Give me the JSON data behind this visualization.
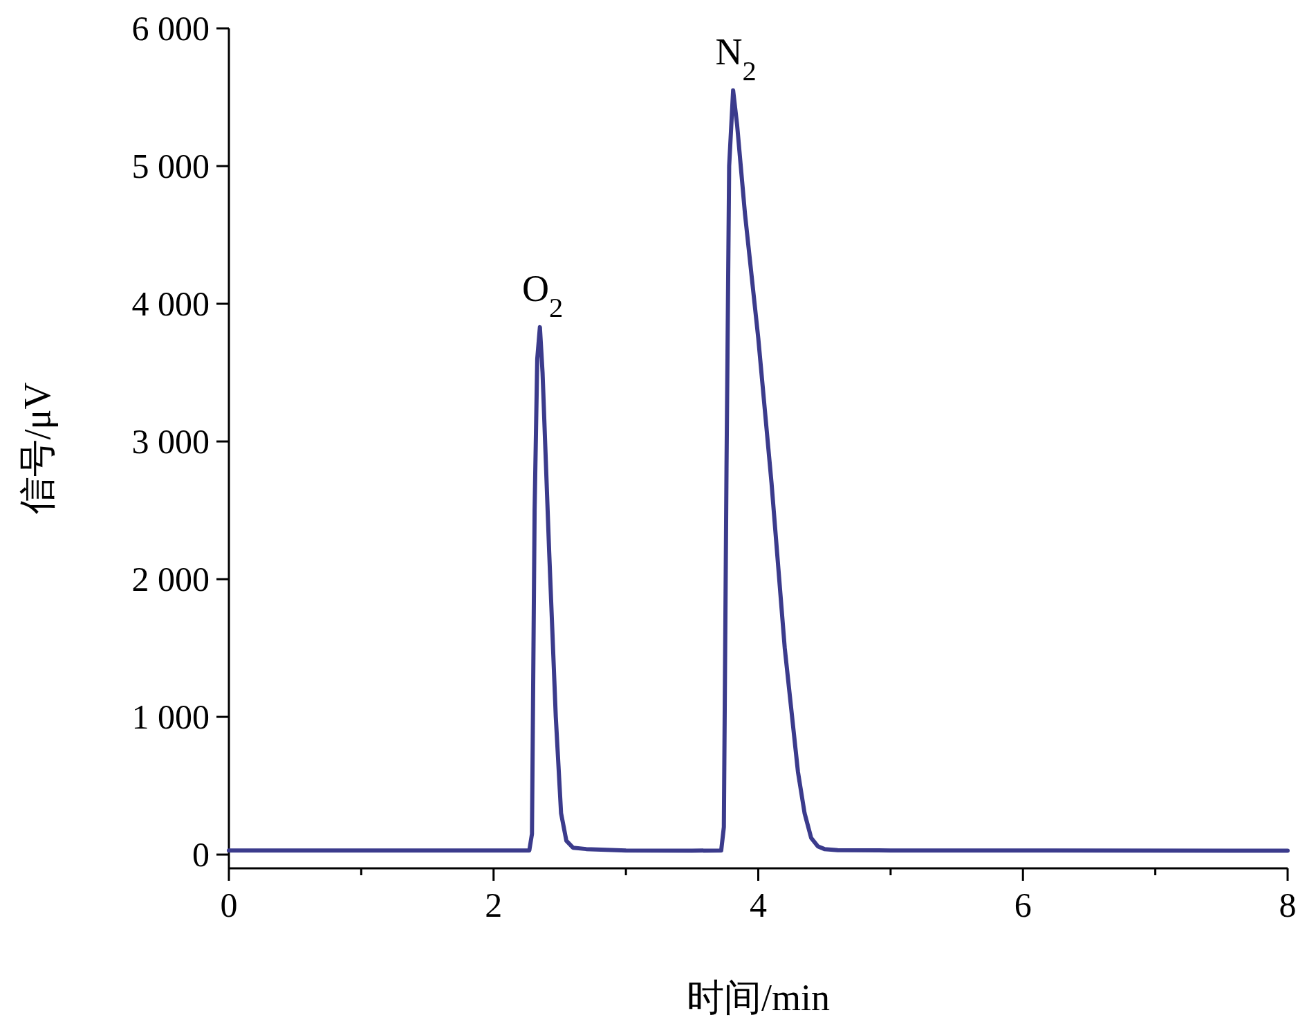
{
  "chart_data": {
    "type": "line",
    "xlabel": "时间/min",
    "ylabel": "信号/μV",
    "color": "#3b3b8c",
    "xlim": [
      0,
      8
    ],
    "ylim": [
      -100,
      6000
    ],
    "xticks": [
      0,
      2,
      4,
      6,
      8
    ],
    "yticks": [
      {
        "value": 0,
        "label": "0"
      },
      {
        "value": 1000,
        "label": "1 000"
      },
      {
        "value": 2000,
        "label": "2 000"
      },
      {
        "value": 3000,
        "label": "3 000"
      },
      {
        "value": 4000,
        "label": "4 000"
      },
      {
        "value": 5000,
        "label": "5 000"
      },
      {
        "value": 6000,
        "label": "6 000"
      }
    ],
    "x": [
      0,
      2.27,
      2.29,
      2.31,
      2.33,
      2.35,
      2.37,
      2.42,
      2.47,
      2.51,
      2.55,
      2.6,
      2.7,
      3.0,
      3.5,
      3.72,
      3.74,
      3.76,
      3.78,
      3.81,
      3.84,
      3.9,
      4.0,
      4.1,
      4.2,
      4.3,
      4.35,
      4.4,
      4.45,
      4.5,
      4.6,
      5,
      8
    ],
    "values": [
      30,
      30,
      150,
      2500,
      3600,
      3830,
      3500,
      2200,
      1000,
      300,
      100,
      50,
      40,
      30,
      28,
      30,
      200,
      2800,
      5000,
      5550,
      5300,
      4650,
      3750,
      2700,
      1500,
      600,
      300,
      120,
      60,
      40,
      32,
      30,
      28
    ],
    "annotations": [
      {
        "text": "O$_{2}$",
        "x": 2.35,
        "y": 3830
      },
      {
        "text": "N$_{2}$",
        "x": 3.81,
        "y": 5550
      }
    ]
  }
}
